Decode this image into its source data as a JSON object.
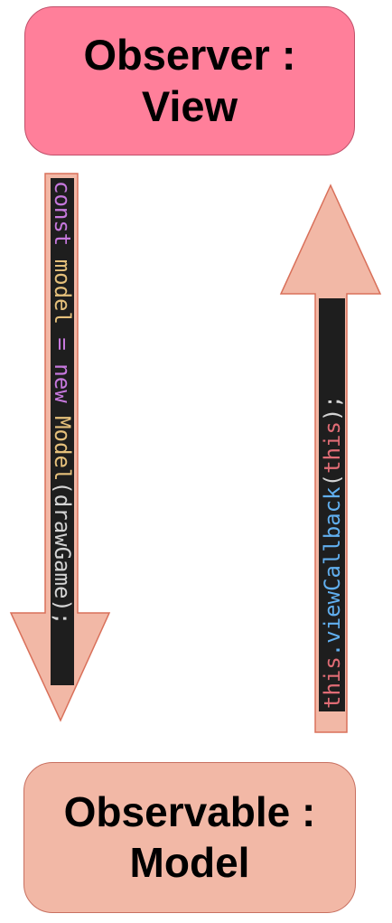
{
  "observer": {
    "line1": "Observer :",
    "line2": "View",
    "fill": "#ff7f9a",
    "stroke": "#c0506a"
  },
  "observable": {
    "line1": "Observable :",
    "line2": "Model",
    "fill": "#f2b8a6",
    "stroke": "#c87060"
  },
  "arrow_down": {
    "label_tokens": [
      "const",
      " model",
      " =",
      " new",
      " Model",
      "(drawGame);"
    ],
    "fill": "#f2b8a6",
    "stroke": "#d9705a"
  },
  "arrow_up": {
    "label_tokens": [
      "this",
      ".viewCallback",
      "(",
      "this",
      ");"
    ],
    "fill": "#f2b8a6",
    "stroke": "#d9705a"
  },
  "code_colors": {
    "background": "#1e1e1e",
    "keyword": "#c678dd",
    "variable": "#e5c07b",
    "class": "#e5c07b",
    "plain": "#d4d4d4",
    "this": "#e06c75",
    "method": "#61afef"
  }
}
